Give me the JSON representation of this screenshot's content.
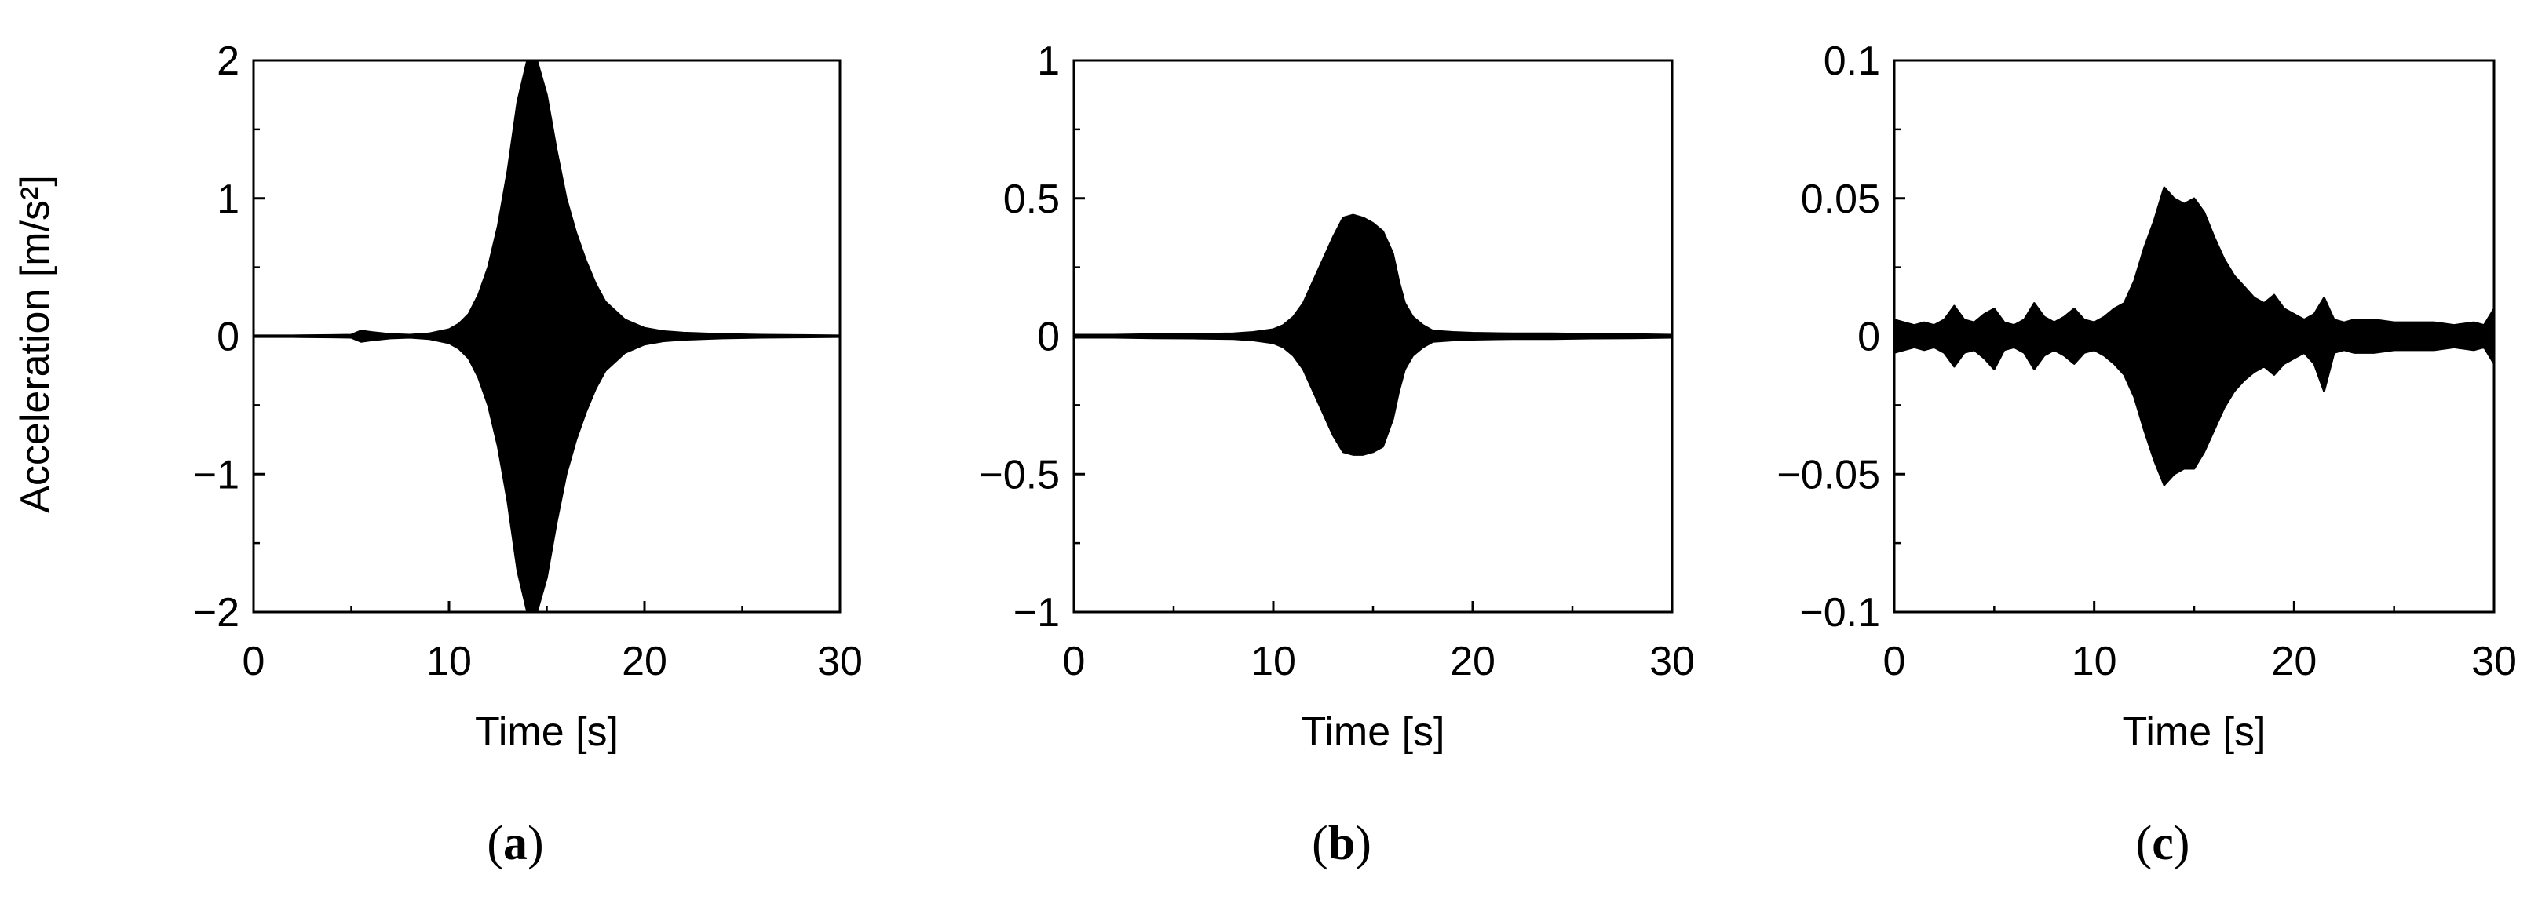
{
  "chart_data": [
    {
      "type": "line",
      "panel_label": "a",
      "xlabel": "Time [s]",
      "ylabel": "Acceleration [m/s²]",
      "xlim": [
        0,
        30
      ],
      "ylim": [
        -2,
        2
      ],
      "xticks": [
        0,
        10,
        20,
        30
      ],
      "yticks": [
        -2,
        -1,
        0,
        1,
        2
      ],
      "ytick_labels": [
        "−2",
        "−1",
        "0",
        "1",
        "2"
      ],
      "grid": false,
      "series": [
        {
          "envelope": {
            "t": [
              0,
              2,
              4,
              5,
              5.5,
              6,
              7,
              8,
              9,
              10,
              10.5,
              11,
              11.5,
              12,
              12.5,
              13,
              13.5,
              14,
              14.5,
              15,
              15.5,
              16,
              16.5,
              17,
              17.5,
              18,
              19,
              20,
              21,
              22,
              23,
              24,
              26,
              28,
              30
            ],
            "upper": [
              0.005,
              0.005,
              0.008,
              0.01,
              0.04,
              0.03,
              0.015,
              0.01,
              0.02,
              0.05,
              0.09,
              0.16,
              0.3,
              0.5,
              0.8,
              1.2,
              1.7,
              2.0,
              2.0,
              1.75,
              1.35,
              1.0,
              0.75,
              0.55,
              0.38,
              0.25,
              0.12,
              0.06,
              0.035,
              0.025,
              0.02,
              0.015,
              0.01,
              0.008,
              0.005
            ],
            "lower": [
              -0.005,
              -0.005,
              -0.008,
              -0.01,
              -0.04,
              -0.03,
              -0.015,
              -0.01,
              -0.02,
              -0.05,
              -0.09,
              -0.16,
              -0.3,
              -0.5,
              -0.8,
              -1.2,
              -1.7,
              -2.0,
              -2.0,
              -1.75,
              -1.35,
              -1.0,
              -0.75,
              -0.55,
              -0.38,
              -0.25,
              -0.12,
              -0.06,
              -0.035,
              -0.025,
              -0.02,
              -0.015,
              -0.01,
              -0.008,
              -0.005
            ]
          }
        }
      ]
    },
    {
      "type": "line",
      "panel_label": "b",
      "xlabel": "Time [s]",
      "ylabel": "",
      "xlim": [
        0,
        30
      ],
      "ylim": [
        -1,
        1
      ],
      "xticks": [
        0,
        10,
        20,
        30
      ],
      "yticks": [
        -1,
        -0.5,
        0,
        0.5,
        1
      ],
      "ytick_labels": [
        "−1",
        "−0.5",
        "0",
        "0.5",
        "1"
      ],
      "grid": false,
      "series": [
        {
          "envelope": {
            "t": [
              0,
              2,
              4,
              6,
              8,
              9,
              10,
              10.5,
              11,
              11.5,
              12,
              12.5,
              13,
              13.5,
              14,
              14.5,
              15,
              15.5,
              16,
              16.3,
              16.6,
              17,
              17.5,
              18,
              19,
              20,
              22,
              24,
              26,
              28,
              30
            ],
            "upper": [
              0.005,
              0.005,
              0.007,
              0.008,
              0.01,
              0.015,
              0.025,
              0.04,
              0.07,
              0.12,
              0.2,
              0.28,
              0.36,
              0.43,
              0.44,
              0.43,
              0.41,
              0.38,
              0.3,
              0.2,
              0.12,
              0.07,
              0.04,
              0.02,
              0.015,
              0.012,
              0.01,
              0.01,
              0.008,
              0.007,
              0.005
            ],
            "lower": [
              -0.005,
              -0.005,
              -0.007,
              -0.008,
              -0.01,
              -0.015,
              -0.025,
              -0.04,
              -0.07,
              -0.12,
              -0.2,
              -0.28,
              -0.36,
              -0.42,
              -0.43,
              -0.43,
              -0.42,
              -0.4,
              -0.3,
              -0.2,
              -0.12,
              -0.07,
              -0.04,
              -0.02,
              -0.015,
              -0.012,
              -0.01,
              -0.01,
              -0.008,
              -0.007,
              -0.005
            ]
          }
        }
      ]
    },
    {
      "type": "line",
      "panel_label": "c",
      "xlabel": "Time [s]",
      "ylabel": "",
      "xlim": [
        0,
        30
      ],
      "ylim": [
        -0.1,
        0.1
      ],
      "xticks": [
        0,
        10,
        20,
        30
      ],
      "yticks": [
        -0.1,
        -0.05,
        0,
        0.05,
        0.1
      ],
      "ytick_labels": [
        "−0.1",
        "−0.05",
        "0",
        "0.05",
        "0.1"
      ],
      "grid": false,
      "series": [
        {
          "envelope": {
            "t": [
              0,
              0.5,
              1,
              1.5,
              2,
              2.5,
              3,
              3.5,
              4,
              4.5,
              5,
              5.5,
              6,
              6.5,
              7,
              7.5,
              8,
              8.5,
              9,
              9.5,
              10,
              10.5,
              11,
              11.5,
              12,
              12.5,
              13,
              13.5,
              14,
              14.5,
              15,
              15.5,
              16,
              16.5,
              17,
              17.5,
              18,
              18.5,
              19,
              19.5,
              20,
              20.5,
              21,
              21.5,
              22,
              22.5,
              23,
              24,
              25,
              26,
              27,
              28,
              29,
              29.5,
              30
            ],
            "upper": [
              0.006,
              0.005,
              0.004,
              0.005,
              0.004,
              0.006,
              0.011,
              0.006,
              0.005,
              0.008,
              0.01,
              0.005,
              0.004,
              0.006,
              0.012,
              0.007,
              0.005,
              0.007,
              0.01,
              0.006,
              0.005,
              0.007,
              0.01,
              0.012,
              0.02,
              0.032,
              0.042,
              0.054,
              0.05,
              0.048,
              0.05,
              0.045,
              0.036,
              0.028,
              0.022,
              0.018,
              0.014,
              0.012,
              0.015,
              0.01,
              0.008,
              0.006,
              0.008,
              0.014,
              0.006,
              0.005,
              0.006,
              0.006,
              0.005,
              0.005,
              0.005,
              0.004,
              0.005,
              0.004,
              0.01
            ],
            "lower": [
              -0.006,
              -0.005,
              -0.004,
              -0.005,
              -0.004,
              -0.006,
              -0.011,
              -0.006,
              -0.005,
              -0.008,
              -0.012,
              -0.005,
              -0.004,
              -0.006,
              -0.012,
              -0.007,
              -0.005,
              -0.007,
              -0.01,
              -0.006,
              -0.005,
              -0.007,
              -0.01,
              -0.014,
              -0.022,
              -0.034,
              -0.045,
              -0.054,
              -0.05,
              -0.048,
              -0.048,
              -0.042,
              -0.034,
              -0.026,
              -0.02,
              -0.016,
              -0.013,
              -0.011,
              -0.014,
              -0.01,
              -0.008,
              -0.006,
              -0.01,
              -0.02,
              -0.006,
              -0.005,
              -0.006,
              -0.006,
              -0.005,
              -0.005,
              -0.005,
              -0.004,
              -0.005,
              -0.004,
              -0.01
            ]
          }
        }
      ]
    }
  ]
}
